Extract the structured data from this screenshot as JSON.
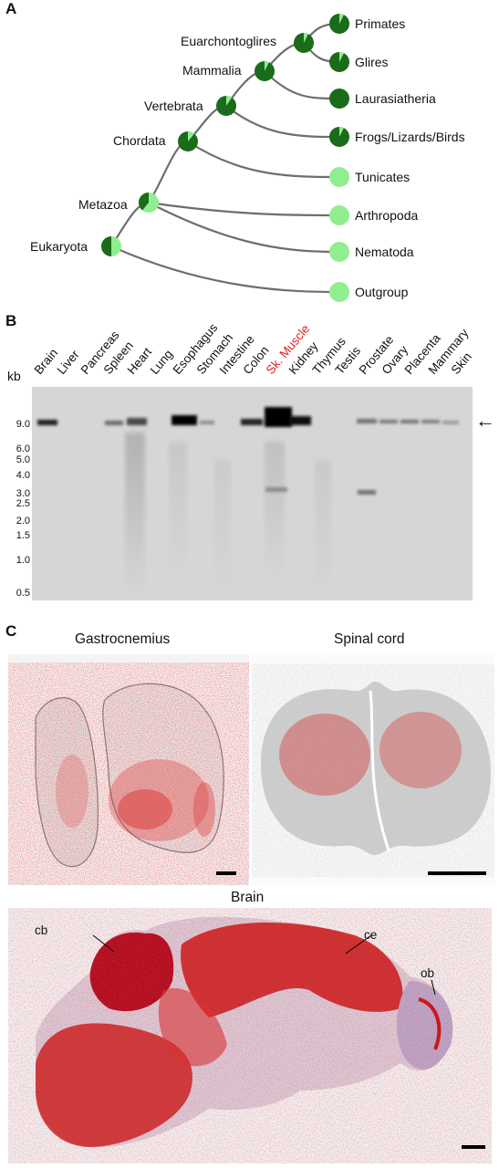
{
  "panels": {
    "a": {
      "letter": "A",
      "nodes": [
        {
          "label": "Eukaryota"
        },
        {
          "label": "Metazoa"
        },
        {
          "label": "Chordata"
        },
        {
          "label": "Vertebrata"
        },
        {
          "label": "Mammalia"
        },
        {
          "label": "Euarchontoglires"
        }
      ],
      "leaves": [
        {
          "label": "Primates"
        },
        {
          "label": "Glires"
        },
        {
          "label": "Laurasiatheria"
        },
        {
          "label": "Frogs/Lizards/Birds"
        },
        {
          "label": "Tunicates"
        },
        {
          "label": "Arthropoda"
        },
        {
          "label": "Nematoda"
        },
        {
          "label": "Outgroup"
        }
      ],
      "colors": {
        "dark_green": "#1a6b1a",
        "light_green": "#90ee90",
        "branch": "#6e6e6e"
      }
    },
    "b": {
      "letter": "B",
      "kb_label": "kb",
      "kb_ticks": [
        "9.0",
        "6.0",
        "5.0",
        "4.0",
        "3.0",
        "2.5",
        "2.0",
        "1.5",
        "1.0",
        "0.5"
      ],
      "lanes": [
        "Brain",
        "Liver",
        "Pancreas",
        "Spleen",
        "Heart",
        "Lung",
        "Esophagus",
        "Stomach",
        "Intestine",
        "Colon",
        "Sk. Muscle",
        "Kidney",
        "Thymus",
        "Testis",
        "Prostate",
        "Ovary",
        "Placenta",
        "Mammary",
        "Skin"
      ],
      "highlight_lane": "Sk. Muscle",
      "highlight_color": "#e02020",
      "arrow": "←"
    },
    "c": {
      "letter": "C",
      "titles": {
        "gastrocnemius": "Gastrocnemius",
        "spinal": "Spinal cord",
        "brain": "Brain"
      },
      "brain_labels": {
        "cb": "cb",
        "ce": "ce",
        "ob": "ob"
      },
      "stain_color": "#d81818"
    }
  }
}
